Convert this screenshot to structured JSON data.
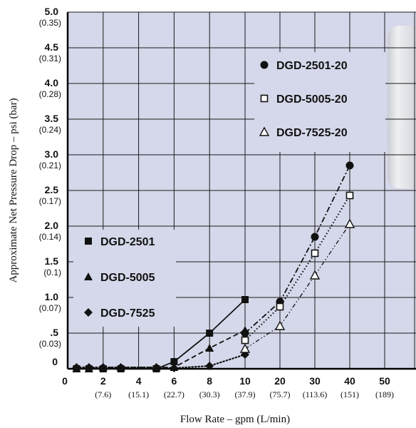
{
  "chart_data": {
    "type": "line",
    "xlabel": "Flow Rate – gpm (L/min)",
    "ylabel": "Approximate Net Pressure Drop – psi (bar)",
    "ylim": [
      0,
      5
    ],
    "x_ticks": [
      {
        "v": 0,
        "label": "0",
        "sub": ""
      },
      {
        "v": 2,
        "label": "2",
        "sub": "(7.6)"
      },
      {
        "v": 4,
        "label": "4",
        "sub": "(15.1)"
      },
      {
        "v": 6,
        "label": "6",
        "sub": "(22.7)"
      },
      {
        "v": 8,
        "label": "8",
        "sub": "(30.3)"
      },
      {
        "v": 10,
        "label": "10",
        "sub": "(37.9)"
      },
      {
        "v": 20,
        "label": "20",
        "sub": "(75.7)"
      },
      {
        "v": 30,
        "label": "30",
        "sub": "(113.6)"
      },
      {
        "v": 40,
        "label": "40",
        "sub": "(151)"
      },
      {
        "v": 50,
        "label": "50",
        "sub": "(189)"
      }
    ],
    "y_ticks": [
      {
        "v": 0,
        "label": "0",
        "sub": ""
      },
      {
        "v": 0.5,
        "label": ".5",
        "sub": "(0.03)"
      },
      {
        "v": 1.0,
        "label": "1.0",
        "sub": "(0.07)"
      },
      {
        "v": 1.5,
        "label": "1.5",
        "sub": "(0.1)"
      },
      {
        "v": 2.0,
        "label": "2.0",
        "sub": "(0.14)"
      },
      {
        "v": 2.5,
        "label": "2.5",
        "sub": "(0.17)"
      },
      {
        "v": 3.0,
        "label": "3.0",
        "sub": "(0.21)"
      },
      {
        "v": 3.5,
        "label": "3.5",
        "sub": "(0.24)"
      },
      {
        "v": 4.0,
        "label": "4.0",
        "sub": "(0.28)"
      },
      {
        "v": 4.5,
        "label": "4.5",
        "sub": "(0.31)"
      },
      {
        "v": 5.0,
        "label": "5.0",
        "sub": "(0.35)"
      }
    ],
    "grid": true,
    "x_scale": "two linear segments: 0–10 gpm and 10–50 gpm",
    "series": [
      {
        "name": "DGD-2501",
        "marker": "square-filled",
        "line": "solid",
        "points": [
          [
            0.5,
            0
          ],
          [
            1.2,
            0
          ],
          [
            2,
            0
          ],
          [
            3,
            0
          ],
          [
            5,
            0
          ],
          [
            6,
            0.1
          ],
          [
            8,
            0.5
          ],
          [
            10,
            0.97
          ]
        ]
      },
      {
        "name": "DGD-5005",
        "marker": "triangle-filled",
        "line": "dashed",
        "points": [
          [
            0.5,
            0
          ],
          [
            1.2,
            0
          ],
          [
            2,
            0.02
          ],
          [
            3,
            0.02
          ],
          [
            5,
            0.02
          ],
          [
            6,
            0.02
          ],
          [
            8,
            0.29
          ],
          [
            10,
            0.54
          ]
        ]
      },
      {
        "name": "DGD-7525",
        "marker": "diamond-filled",
        "line": "dotted",
        "points": [
          [
            0.5,
            0.02
          ],
          [
            1.2,
            0.02
          ],
          [
            2,
            0.02
          ],
          [
            3,
            0.02
          ],
          [
            5,
            0.02
          ],
          [
            6,
            0.01
          ],
          [
            8,
            0.04
          ],
          [
            10,
            0.2
          ]
        ]
      },
      {
        "name": "DGD-2501-20",
        "marker": "circle-filled",
        "line": "dash-dot",
        "points": [
          [
            10,
            0.5
          ],
          [
            20,
            0.94
          ],
          [
            30,
            1.85
          ],
          [
            40,
            2.85
          ]
        ]
      },
      {
        "name": "DGD-5005-20",
        "marker": "square-open",
        "line": "dotted",
        "points": [
          [
            10,
            0.4
          ],
          [
            20,
            0.87
          ],
          [
            30,
            1.62
          ],
          [
            40,
            2.43
          ]
        ]
      },
      {
        "name": "DGD-7525-20",
        "marker": "triangle-open",
        "line": "dash-dot-dot",
        "points": [
          [
            10,
            0.28
          ],
          [
            20,
            0.6
          ],
          [
            30,
            1.31
          ],
          [
            40,
            2.03
          ]
        ]
      }
    ],
    "legends": [
      {
        "location": "right-top",
        "entries": [
          "DGD-2501-20",
          "DGD-5005-20",
          "DGD-7525-20"
        ]
      },
      {
        "location": "left-middle",
        "entries": [
          "DGD-2501",
          "DGD-5005",
          "DGD-7525"
        ]
      }
    ]
  },
  "colors": {
    "plot_background": "#d5d8ea",
    "grid": "#1a1a1a",
    "lines": "#111111",
    "product_image": "#e4e6ea"
  },
  "decor": {
    "product_image_icon": "filter-cartridge-icon"
  }
}
